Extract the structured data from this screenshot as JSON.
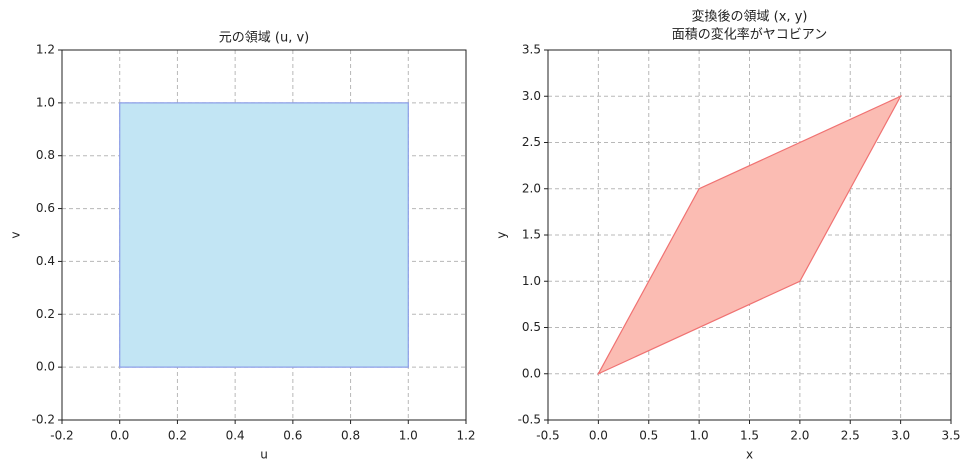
{
  "chart_data": [
    {
      "type": "polygon",
      "title": "元の領域 (u, v)",
      "xlabel": "u",
      "ylabel": "v",
      "series": [
        {
          "x": [
            0,
            1,
            1,
            0
          ],
          "values": [
            0,
            0,
            1,
            1
          ],
          "color": "#c2e5f4",
          "edgecolor": "#8c9ee8"
        }
      ],
      "xlim": [
        -0.2,
        1.2
      ],
      "ylim": [
        -0.2,
        1.2
      ],
      "xticks": [
        -0.2,
        {
          "value": 0,
          "label": "0.0"
        },
        0.2,
        0.4,
        0.6,
        0.8,
        {
          "value": 1,
          "label": "1.0"
        },
        1.2
      ],
      "yticks": [
        -0.2,
        {
          "value": 0,
          "label": "0.0"
        },
        0.2,
        0.4,
        0.6,
        0.8,
        {
          "value": 1,
          "label": "1.0"
        },
        1.2
      ],
      "grid": true
    },
    {
      "type": "polygon",
      "title": "変換後の領域 (x, y)",
      "subtitle": "面積の変化率がヤコビアン",
      "xlabel": "x",
      "ylabel": "y",
      "series": [
        {
          "x": [
            0,
            2,
            3,
            1
          ],
          "values": [
            0,
            1,
            3,
            2
          ],
          "color": "#fbbcb3",
          "edgecolor": "#f07272"
        }
      ],
      "xlim": [
        -0.5,
        3.5
      ],
      "ylim": [
        -0.5,
        3.5
      ],
      "xticks": [
        -0.5,
        {
          "value": 0,
          "label": "0.0"
        },
        0.5,
        {
          "value": 1,
          "label": "1.0"
        },
        1.5,
        {
          "value": 2,
          "label": "2.0"
        },
        2.5,
        {
          "value": 3,
          "label": "3.0"
        },
        3.5
      ],
      "yticks": [
        -0.5,
        {
          "value": 0,
          "label": "0.0"
        },
        0.5,
        {
          "value": 1,
          "label": "1.0"
        },
        1.5,
        {
          "value": 2,
          "label": "2.0"
        },
        2.5,
        {
          "value": 3,
          "label": "3.0"
        },
        3.5
      ],
      "grid": true
    }
  ]
}
